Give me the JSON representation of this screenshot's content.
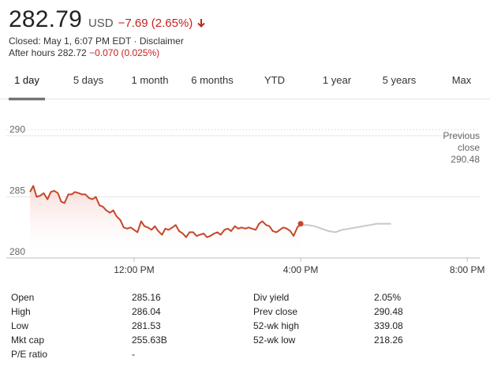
{
  "quote": {
    "price": "282.79",
    "currency": "USD",
    "change": "−7.69 (2.65%)",
    "arrow_icon": "arrow-down-icon",
    "closed_text": "Closed: May 1, 6:07 PM EDT · Disclaimer",
    "after_hours_label": "After hours 282.72",
    "after_hours_change": "−0.070 (0.025%)",
    "negative_color": "#c5221f"
  },
  "tabs": [
    {
      "label": "1 day",
      "active": true
    },
    {
      "label": "5 days"
    },
    {
      "label": "1 month"
    },
    {
      "label": "6 months"
    },
    {
      "label": "YTD"
    },
    {
      "label": "1 year"
    },
    {
      "label": "5 years"
    },
    {
      "label": "Max"
    }
  ],
  "chart_data": {
    "type": "line",
    "ylim": [
      280,
      290
    ],
    "yticks": [
      "290",
      "285",
      "280"
    ],
    "xticks": [
      "12:00 PM",
      "4:00 PM",
      "8:00 PM"
    ],
    "previous_close_label": [
      "Previous",
      "close",
      "290.48"
    ],
    "previous_close": 290.48,
    "series": [
      {
        "color": "#c5472b",
        "x": [
          9.5,
          9.58,
          9.66,
          9.75,
          9.83,
          9.92,
          10.0,
          10.08,
          10.17,
          10.25,
          10.33,
          10.42,
          10.5,
          10.58,
          10.67,
          10.75,
          10.83,
          10.92,
          11.0,
          11.08,
          11.17,
          11.25,
          11.33,
          11.42,
          11.5,
          11.58,
          11.67,
          11.75,
          11.83,
          11.92,
          12.0,
          12.08,
          12.17,
          12.25,
          12.33,
          12.42,
          12.5,
          12.58,
          12.67,
          12.75,
          12.83,
          12.92,
          13.0,
          13.08,
          13.17,
          13.25,
          13.33,
          13.42,
          13.5,
          13.58,
          13.67,
          13.75,
          13.83,
          13.92,
          14.0,
          14.08,
          14.17,
          14.25,
          14.33,
          14.42,
          14.5,
          14.58,
          14.67,
          14.75,
          14.83,
          14.92,
          15.0,
          15.08,
          15.17,
          15.25,
          15.33,
          15.42,
          15.5,
          15.58,
          15.67,
          15.75,
          15.83,
          15.92,
          16.0
        ],
        "values": [
          285.4,
          285.9,
          285.0,
          285.1,
          285.3,
          284.8,
          285.4,
          285.5,
          285.3,
          284.6,
          284.5,
          285.2,
          285.2,
          285.4,
          285.3,
          285.2,
          285.2,
          284.9,
          284.8,
          285.0,
          284.3,
          284.2,
          283.9,
          283.7,
          283.9,
          283.4,
          283.1,
          282.5,
          282.4,
          282.5,
          282.3,
          282.1,
          283.0,
          282.6,
          282.5,
          282.3,
          282.6,
          282.2,
          281.9,
          282.4,
          282.3,
          282.5,
          282.7,
          282.2,
          282.0,
          281.7,
          282.1,
          282.1,
          281.8,
          281.9,
          282.0,
          281.7,
          281.8,
          282.0,
          282.1,
          281.9,
          282.3,
          282.4,
          282.2,
          282.6,
          282.4,
          282.5,
          282.4,
          282.5,
          282.4,
          282.3,
          282.8,
          283.0,
          282.7,
          282.6,
          282.2,
          282.1,
          282.3,
          282.5,
          282.4,
          282.2,
          281.8,
          282.5,
          282.8
        ]
      },
      {
        "color": "#c8c8c8",
        "x": [
          16.0,
          16.17,
          16.33,
          16.5,
          16.67,
          16.83,
          17.0,
          17.17,
          17.33,
          17.5,
          17.67,
          17.83,
          18.0,
          18.17
        ],
        "values": [
          282.7,
          282.7,
          282.6,
          282.4,
          282.2,
          282.1,
          282.3,
          282.4,
          282.5,
          282.6,
          282.7,
          282.8,
          282.8,
          282.8
        ]
      }
    ]
  },
  "stats": [
    {
      "label": "Open",
      "value": "285.16"
    },
    {
      "label": "High",
      "value": "286.04"
    },
    {
      "label": "Low",
      "value": "281.53"
    },
    {
      "label": "Mkt cap",
      "value": "255.63B"
    },
    {
      "label": "P/E ratio",
      "value": "-"
    },
    {
      "label": "Div yield",
      "value": "2.05%"
    },
    {
      "label": "Prev close",
      "value": "290.48"
    },
    {
      "label": "52-wk high",
      "value": "339.08"
    },
    {
      "label": "52-wk low",
      "value": "218.26"
    }
  ]
}
